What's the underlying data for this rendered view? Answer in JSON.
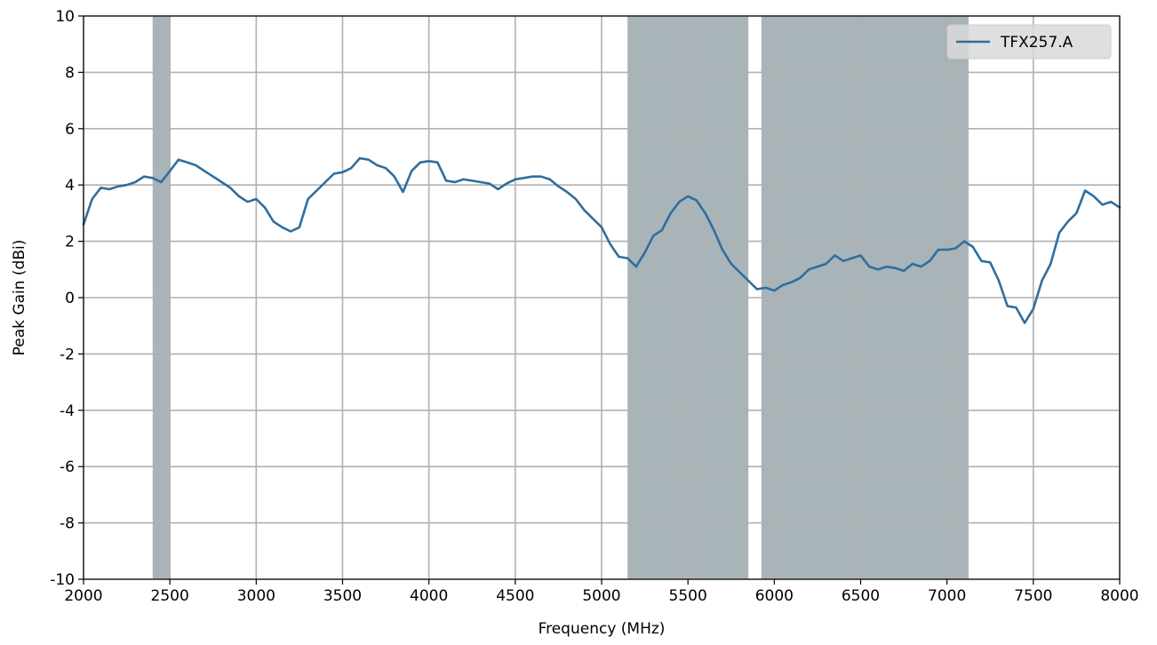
{
  "chart_data": {
    "type": "line",
    "title": "",
    "xlabel": "Frequency (MHz)",
    "ylabel": "Peak Gain (dBi)",
    "xlim": [
      2000,
      8000
    ],
    "ylim": [
      -10,
      10
    ],
    "xticks": [
      2000,
      2500,
      3000,
      3500,
      4000,
      4500,
      5000,
      5500,
      6000,
      6500,
      7000,
      7500,
      8000
    ],
    "yticks": [
      -10,
      -8,
      -6,
      -4,
      -2,
      0,
      2,
      4,
      6,
      8,
      10
    ],
    "grid": true,
    "legend_position": "top-right",
    "shaded_bands": [
      {
        "from": 2400,
        "to": 2500,
        "color": "#a9b4b9"
      },
      {
        "from": 5150,
        "to": 5850,
        "color": "#a9b4b9"
      },
      {
        "from": 5925,
        "to": 7125,
        "color": "#a9b4b9"
      }
    ],
    "series": [
      {
        "name": "TFX257.A",
        "color": "#2f6e9e",
        "x": [
          2000,
          2050,
          2100,
          2150,
          2200,
          2250,
          2300,
          2350,
          2400,
          2450,
          2500,
          2550,
          2600,
          2650,
          2700,
          2750,
          2800,
          2850,
          2900,
          2950,
          3000,
          3050,
          3100,
          3150,
          3200,
          3250,
          3300,
          3350,
          3400,
          3450,
          3500,
          3550,
          3600,
          3650,
          3700,
          3750,
          3800,
          3850,
          3900,
          3950,
          4000,
          4050,
          4100,
          4150,
          4200,
          4250,
          4300,
          4350,
          4400,
          4450,
          4500,
          4550,
          4600,
          4650,
          4700,
          4750,
          4800,
          4850,
          4900,
          4950,
          5000,
          5050,
          5100,
          5150,
          5200,
          5250,
          5300,
          5350,
          5400,
          5450,
          5500,
          5550,
          5600,
          5650,
          5700,
          5750,
          5800,
          5850,
          5900,
          5950,
          6000,
          6050,
          6100,
          6150,
          6200,
          6250,
          6300,
          6350,
          6400,
          6450,
          6500,
          6550,
          6600,
          6650,
          6700,
          6750,
          6800,
          6850,
          6900,
          6950,
          7000,
          7050,
          7100,
          7150,
          7200,
          7250,
          7300,
          7350,
          7400,
          7450,
          7500,
          7550,
          7600,
          7650,
          7700,
          7750,
          7800,
          7850,
          7900,
          7950,
          8000
        ],
        "values": [
          2.6,
          3.5,
          3.9,
          3.85,
          3.95,
          4.0,
          4.1,
          4.3,
          4.25,
          4.1,
          4.5,
          4.9,
          4.8,
          4.7,
          4.5,
          4.3,
          4.1,
          3.9,
          3.6,
          3.4,
          3.5,
          3.2,
          2.7,
          2.5,
          2.35,
          2.5,
          3.5,
          3.8,
          4.1,
          4.4,
          4.45,
          4.6,
          4.95,
          4.9,
          4.7,
          4.6,
          4.3,
          3.75,
          4.5,
          4.8,
          4.85,
          4.8,
          4.15,
          4.1,
          4.2,
          4.15,
          4.1,
          4.05,
          3.85,
          4.05,
          4.2,
          4.25,
          4.3,
          4.3,
          4.2,
          3.95,
          3.75,
          3.5,
          3.1,
          2.8,
          2.5,
          1.9,
          1.45,
          1.4,
          1.1,
          1.6,
          2.2,
          2.4,
          3.0,
          3.4,
          3.6,
          3.45,
          3.0,
          2.4,
          1.7,
          1.2,
          0.9,
          0.6,
          0.3,
          0.35,
          0.25,
          0.45,
          0.55,
          0.7,
          1.0,
          1.1,
          1.2,
          1.5,
          1.3,
          1.4,
          1.5,
          1.1,
          1.0,
          1.1,
          1.05,
          0.95,
          1.2,
          1.1,
          1.3,
          1.7,
          1.7,
          1.75,
          2.0,
          1.8,
          1.3,
          1.25,
          0.6,
          -0.3,
          -0.35,
          -0.9,
          -0.4,
          0.6,
          1.2,
          2.3,
          2.7,
          3.0,
          3.8,
          3.6,
          3.3,
          3.4,
          3.2
        ]
      }
    ]
  }
}
